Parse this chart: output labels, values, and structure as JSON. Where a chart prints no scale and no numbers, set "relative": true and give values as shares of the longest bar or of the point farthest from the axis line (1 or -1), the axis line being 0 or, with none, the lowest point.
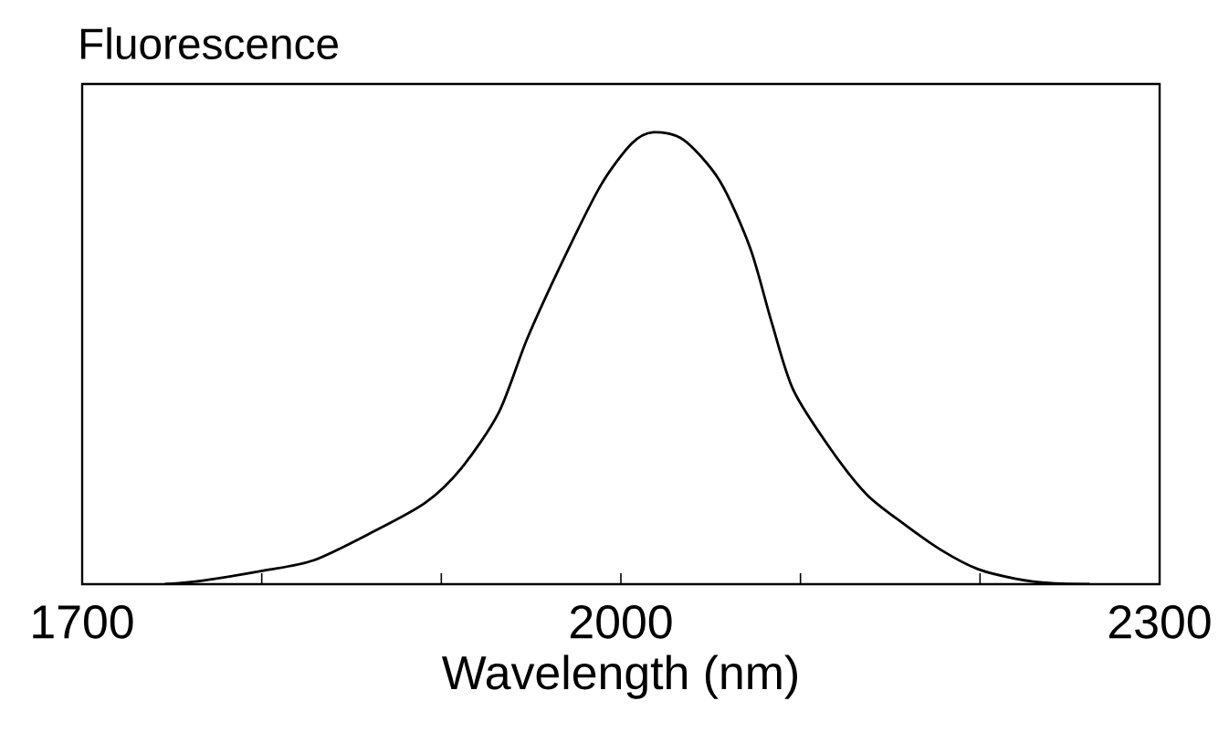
{
  "chart_data": {
    "type": "line",
    "title": "Fluorescence",
    "xlabel": "Wavelength (nm)",
    "relative": true,
    "xlim": [
      1700,
      2300
    ],
    "xticks": [
      1700,
      {
        "value": 1800,
        "label": null
      },
      {
        "value": 1900,
        "label": null
      },
      2000,
      {
        "value": 2100,
        "label": null
      },
      {
        "value": 2200,
        "label": null
      },
      2300
    ],
    "x": [
      1746,
      1767,
      1801,
      1829,
      1862,
      1891,
      1911,
      1932,
      1948,
      1969,
      1989,
      2006,
      2018,
      2035,
      2055,
      2072,
      2084,
      2096,
      2117,
      2137,
      2158,
      2179,
      2199,
      2220,
      2240,
      2261
    ],
    "series": [
      {
        "color": "#000000",
        "values": [
          0,
          0.008,
          0.03,
          0.053,
          0.116,
          0.18,
          0.256,
          0.38,
          0.545,
          0.727,
          0.884,
          0.975,
          1.0,
          0.983,
          0.893,
          0.744,
          0.579,
          0.43,
          0.298,
          0.198,
          0.132,
          0.074,
          0.033,
          0.012,
          0.002,
          0
        ]
      }
    ],
    "grid": false,
    "marker": "none",
    "line_style": "solid"
  }
}
